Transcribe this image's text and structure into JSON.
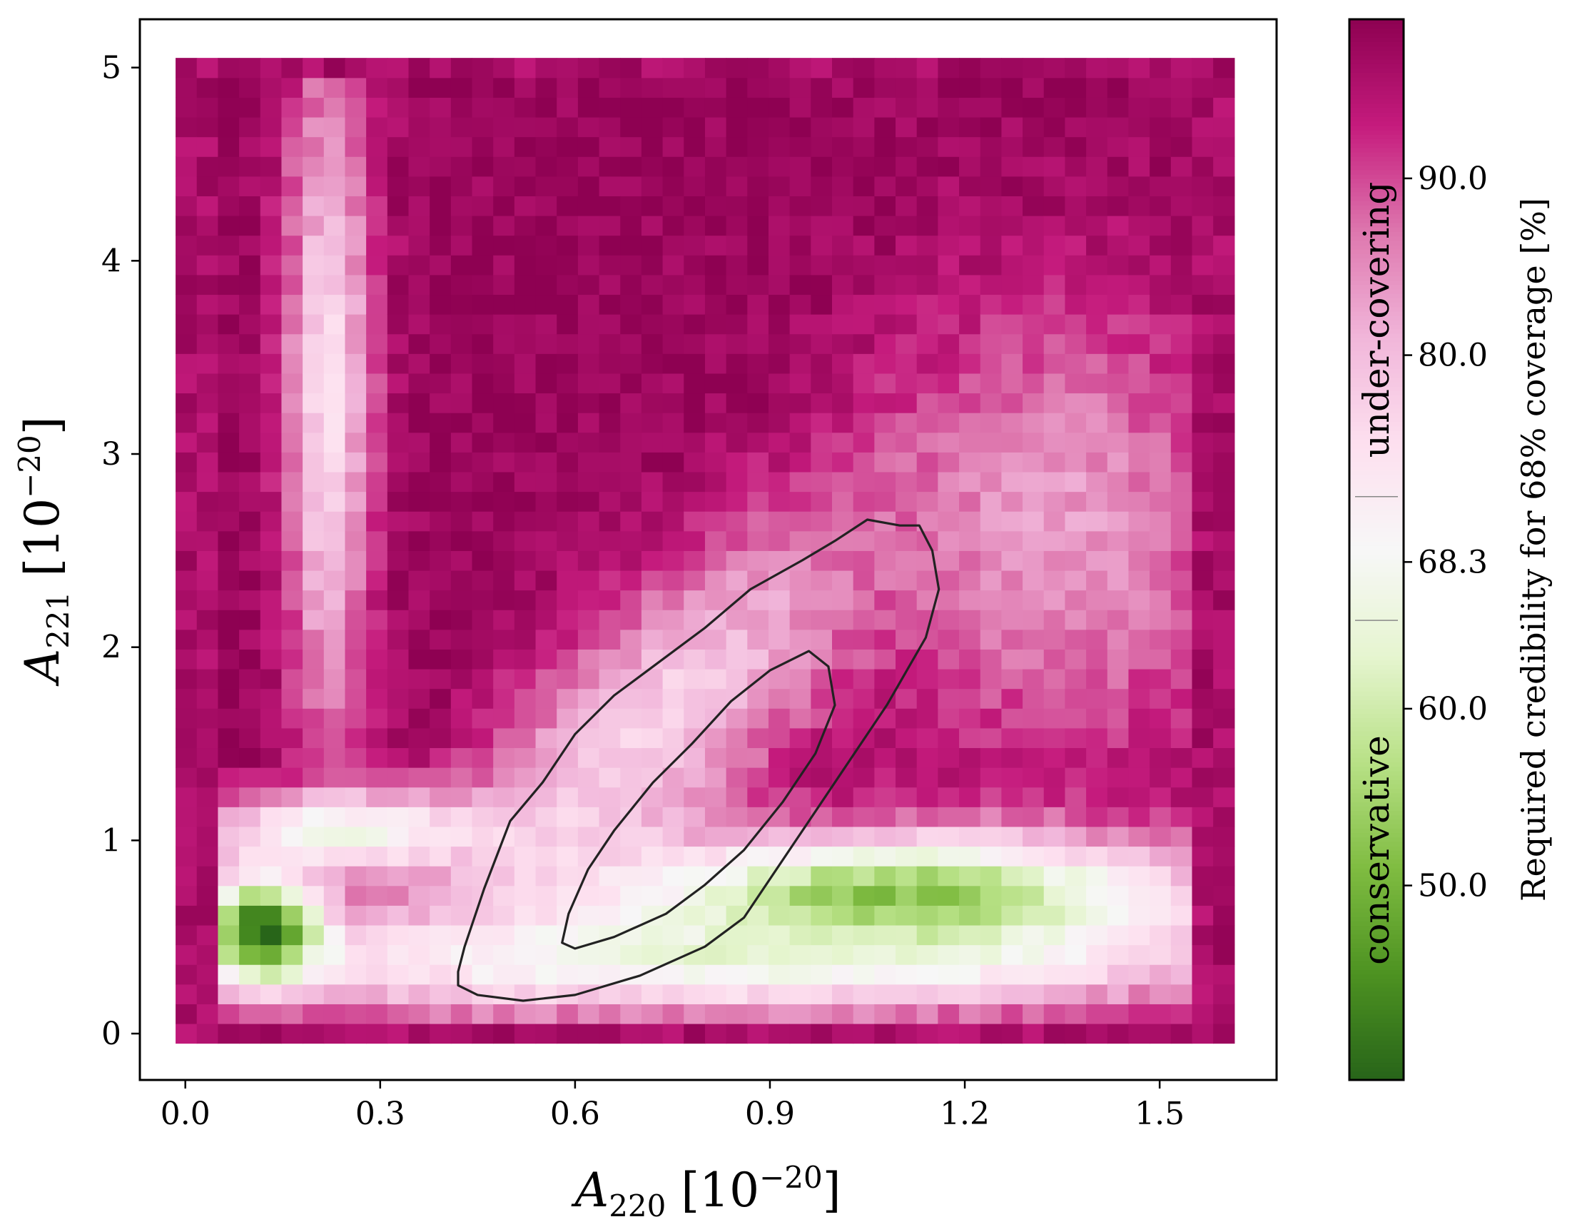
{
  "chart_data": {
    "type": "heatmap",
    "title": "",
    "xlabel": {
      "var": "A",
      "sub": "220",
      "unit_base": "10",
      "unit_exp": "−20"
    },
    "ylabel": {
      "var": "A",
      "sub": "221",
      "unit_base": "10",
      "unit_exp": "−20"
    },
    "xlim": [
      -0.07,
      1.68
    ],
    "ylim": [
      -0.24,
      5.25
    ],
    "xticks": [
      0.0,
      0.3,
      0.6,
      0.9,
      1.2,
      1.5
    ],
    "xtick_labels": [
      "0.0",
      "0.3",
      "0.6",
      "0.9",
      "1.2",
      "1.5"
    ],
    "yticks": [
      0,
      1,
      2,
      3,
      4,
      5
    ],
    "ytick_labels": [
      "0",
      "1",
      "2",
      "3",
      "4",
      "5"
    ],
    "grid": false,
    "heatmap": {
      "x_range": [
        -0.015,
        1.615
      ],
      "y_range": [
        -0.05,
        5.05
      ],
      "nx": 50,
      "ny": 50,
      "value_description": "required credibility (%) for 68% coverage, estimated per region"
    },
    "regions": [
      {
        "name": "edges",
        "approx_value": 96
      },
      {
        "name": "upper-center",
        "approx_value": 98
      },
      {
        "name": "left-column",
        "approx_value": 76
      },
      {
        "name": "left-bottom-blob",
        "center": [
          0.12,
          0.55
        ],
        "approx_value": 40
      },
      {
        "name": "right-green-band",
        "center": [
          1.1,
          0.72
        ],
        "approx_value": 52
      },
      {
        "name": "bottom-white-band",
        "center": [
          0.8,
          0.3
        ],
        "approx_value": 68
      }
    ],
    "contours": [
      {
        "name": "outer-contour",
        "points": [
          [
            0.42,
            0.25
          ],
          [
            0.45,
            0.2
          ],
          [
            0.52,
            0.17
          ],
          [
            0.6,
            0.2
          ],
          [
            0.7,
            0.3
          ],
          [
            0.8,
            0.45
          ],
          [
            0.86,
            0.6
          ],
          [
            0.93,
            0.95
          ],
          [
            1.0,
            1.3
          ],
          [
            1.08,
            1.7
          ],
          [
            1.14,
            2.05
          ],
          [
            1.16,
            2.3
          ],
          [
            1.15,
            2.5
          ],
          [
            1.13,
            2.63
          ],
          [
            1.1,
            2.63
          ],
          [
            1.05,
            2.66
          ],
          [
            1.0,
            2.55
          ],
          [
            0.95,
            2.45
          ],
          [
            0.87,
            2.3
          ],
          [
            0.8,
            2.1
          ],
          [
            0.72,
            1.9
          ],
          [
            0.66,
            1.75
          ],
          [
            0.6,
            1.55
          ],
          [
            0.55,
            1.3
          ],
          [
            0.5,
            1.1
          ],
          [
            0.46,
            0.75
          ],
          [
            0.43,
            0.45
          ],
          [
            0.42,
            0.32
          ],
          [
            0.42,
            0.25
          ]
        ]
      },
      {
        "name": "inner-contour",
        "points": [
          [
            0.58,
            0.47
          ],
          [
            0.6,
            0.44
          ],
          [
            0.66,
            0.5
          ],
          [
            0.74,
            0.62
          ],
          [
            0.8,
            0.77
          ],
          [
            0.86,
            0.95
          ],
          [
            0.92,
            1.2
          ],
          [
            0.97,
            1.45
          ],
          [
            1.0,
            1.7
          ],
          [
            0.99,
            1.9
          ],
          [
            0.96,
            1.98
          ],
          [
            0.9,
            1.88
          ],
          [
            0.84,
            1.72
          ],
          [
            0.78,
            1.5
          ],
          [
            0.72,
            1.3
          ],
          [
            0.66,
            1.05
          ],
          [
            0.62,
            0.85
          ],
          [
            0.59,
            0.62
          ],
          [
            0.58,
            0.47
          ]
        ]
      }
    ],
    "colorbar": {
      "label": "Required credibility for 68% coverage [%]",
      "vmin": 39,
      "vmax": 99,
      "ticks": [
        50.0,
        60.0,
        68.3,
        80.0,
        90.0
      ],
      "tick_labels": [
        "50.0",
        "60.0",
        "68.3",
        "80.0",
        "90.0"
      ],
      "colormap": "PiYG",
      "colormap_stops": [
        "#276419",
        "#4d9221",
        "#7fbc41",
        "#b8e186",
        "#e6f5d0",
        "#f7f7f7",
        "#fde0ef",
        "#f1b6da",
        "#de77ae",
        "#c51b7d",
        "#8e0152"
      ],
      "region_labels": [
        {
          "text": "conservative",
          "from": 39,
          "to": 65
        },
        {
          "text": "under-covering",
          "from": 72,
          "to": 92
        }
      ],
      "dividers": [
        65,
        72
      ]
    }
  }
}
